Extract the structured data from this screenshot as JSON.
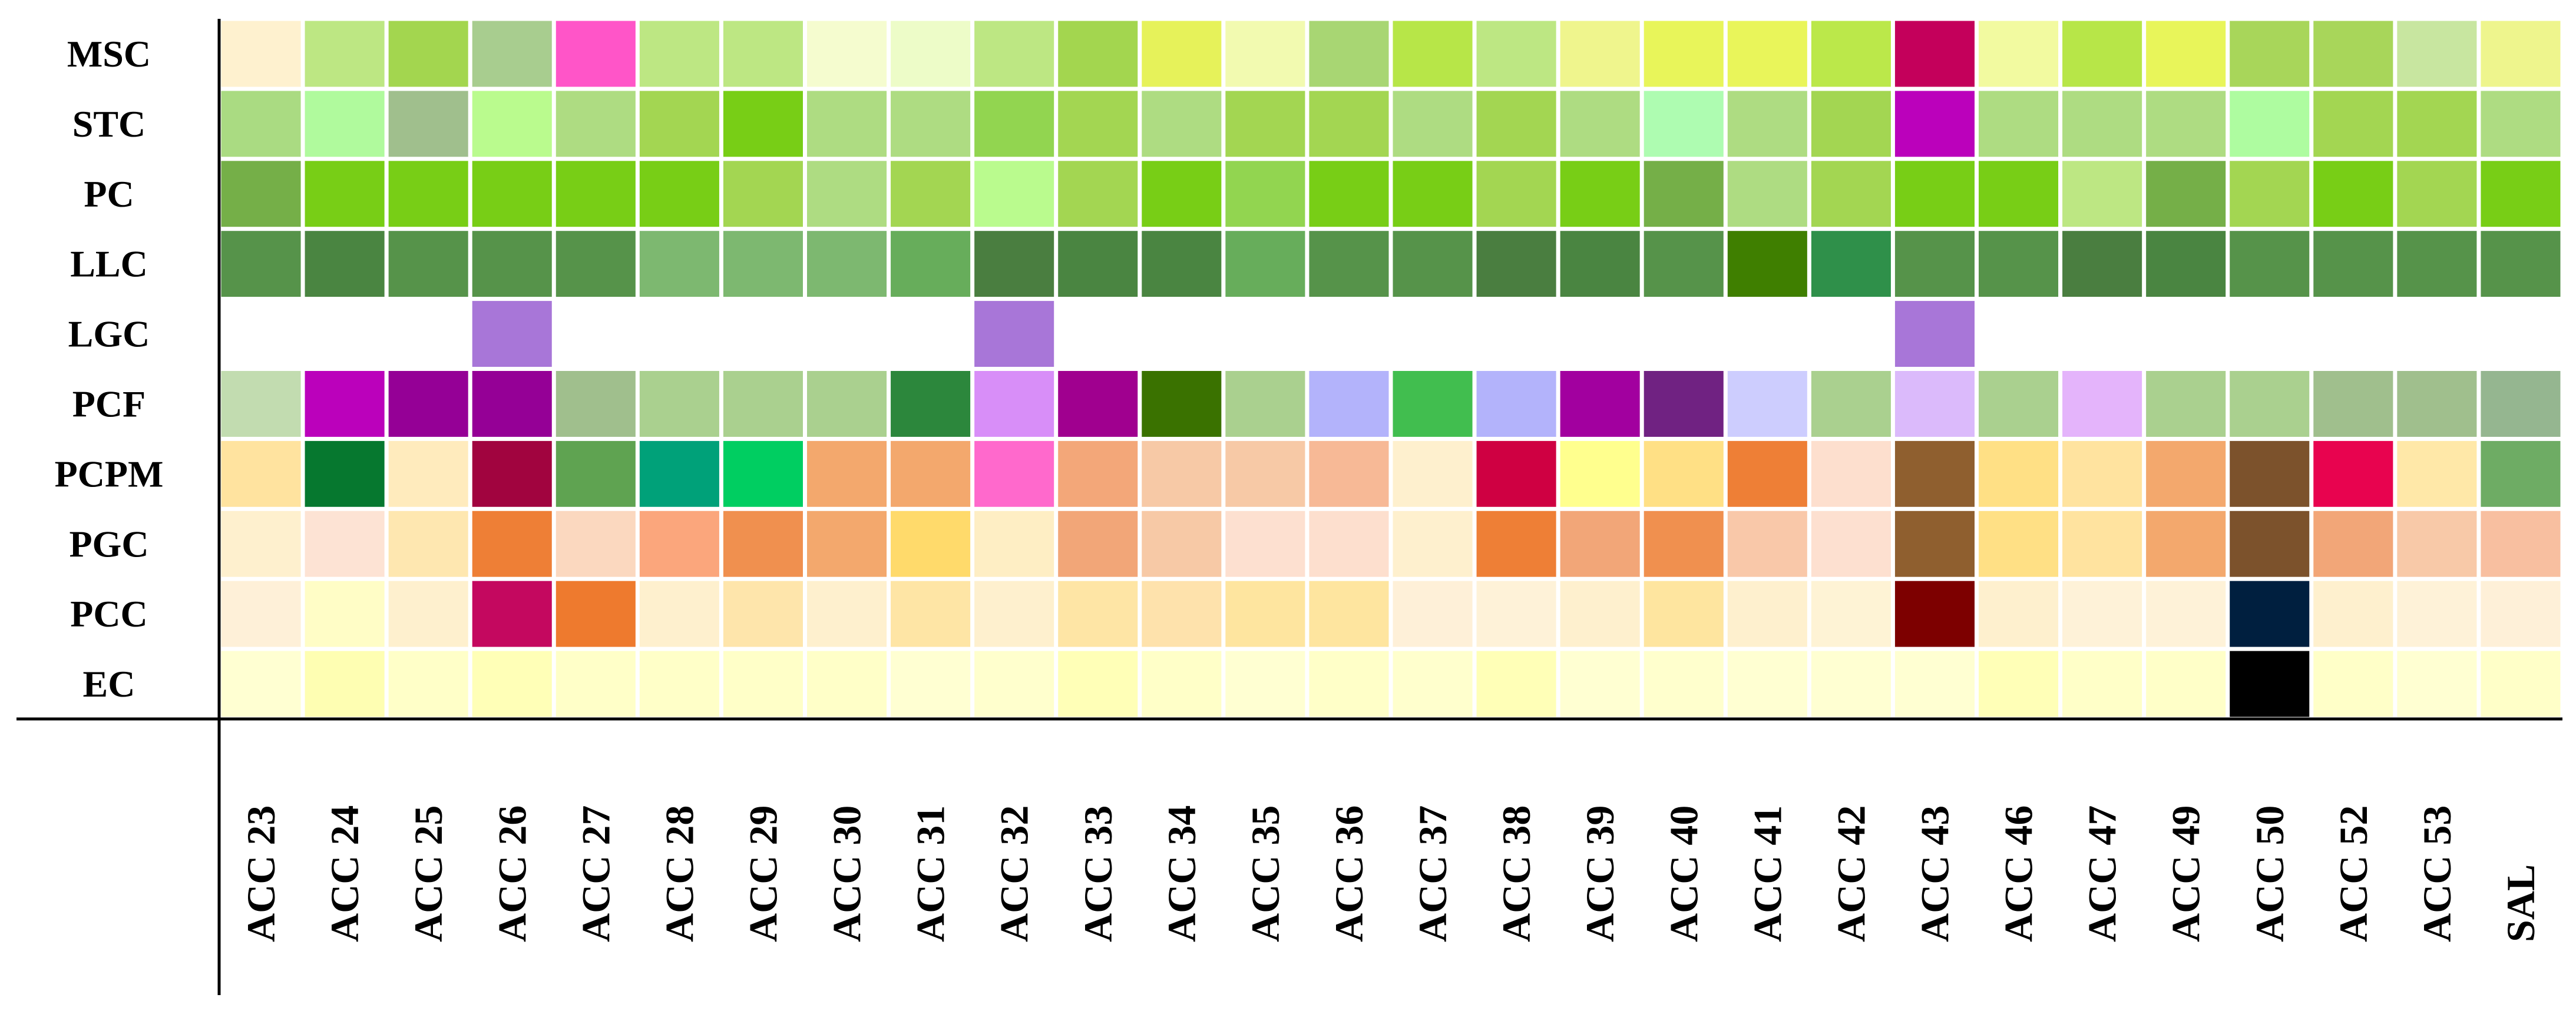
{
  "chart_data": {
    "type": "heatmap",
    "title": "",
    "xlabel": "",
    "ylabel": "",
    "rows": [
      "MSC",
      "STC",
      "PC",
      "LLC",
      "LGC",
      "PCF",
      "PCPM",
      "PGC",
      "PCC",
      "EC"
    ],
    "columns": [
      "ACC 23",
      "ACC 24",
      "ACC 25",
      "ACC 26",
      "ACC 27",
      "ACC 28",
      "ACC 29",
      "ACC 30",
      "ACC 31",
      "ACC 32",
      "ACC 33",
      "ACC 34",
      "ACC 35",
      "ACC 36",
      "ACC 37",
      "ACC 38",
      "ACC 39",
      "ACC 40",
      "ACC 41",
      "ACC 42",
      "ACC 43",
      "ACC 46",
      "ACC 47",
      "ACC 49",
      "ACC 50",
      "ACC 52",
      "ACC 53",
      "SAL"
    ],
    "colors": [
      [
        "#FEF1CF",
        "#BDE783",
        "#A3D64F",
        "#A8CD8F",
        "#FF55C8",
        "#BDE783",
        "#BDE783",
        "#F5FCCF",
        "#EDFCC8",
        "#BDE783",
        "#A3D64F",
        "#E6F25A",
        "#F2FAB0",
        "#A8D673",
        "#B7E648",
        "#BDE783",
        "#EFF58D",
        "#E8F55A",
        "#E9F55A",
        "#BBE84A",
        "#C4005B",
        "#F2FAA0",
        "#B7E648",
        "#E8F55A",
        "#A8D65A",
        "#A8D65A",
        "#C8E6A0",
        "#EEF58D"
      ],
      [
        "#AADB82",
        "#B0FA9D",
        "#A0BF8D",
        "#BAFB8E",
        "#AEDC82",
        "#A3D652",
        "#78CE16",
        "#AEDC82",
        "#AEDC82",
        "#92D550",
        "#A3D652",
        "#AEDC82",
        "#A3D652",
        "#A3D652",
        "#AEDC82",
        "#A3D652",
        "#AEDC82",
        "#AEFCB1",
        "#AEDC82",
        "#A3D652",
        "#BB01BB",
        "#AEDC82",
        "#AEDC82",
        "#AEDC82",
        "#AEFCA0",
        "#A3D652",
        "#A3D652",
        "#AEDC82"
      ],
      [
        "#75AF48",
        "#78CE16",
        "#78CE16",
        "#78CE16",
        "#78CE16",
        "#78CE16",
        "#A3D652",
        "#AEDC82",
        "#A3D652",
        "#BAFB8E",
        "#A3D652",
        "#78CE16",
        "#92D550",
        "#78CE16",
        "#78CE16",
        "#A3D652",
        "#78CE16",
        "#75AF48",
        "#AEDC82",
        "#A3D652",
        "#78CE16",
        "#78CE16",
        "#BDE783",
        "#75AF48",
        "#A3D652",
        "#78CE16",
        "#A3D652",
        "#78CE16"
      ],
      [
        "#56934A",
        "#4A8541",
        "#56934A",
        "#56934A",
        "#56934A",
        "#7DB870",
        "#7DB870",
        "#7DB870",
        "#67AD5B",
        "#4A7E40",
        "#4A8541",
        "#4A8541",
        "#67AD5B",
        "#56934A",
        "#56934A",
        "#4A7E40",
        "#4A8541",
        "#56934A",
        "#3F7F00",
        "#2F904A",
        "#56934A",
        "#56934A",
        "#4A7E40",
        "#4A8541",
        "#56934A",
        "#56934A",
        "#56934A",
        "#56934A"
      ],
      [
        "#FFFFFF",
        "#FFFFFF",
        "#FFFFFF",
        "#A876D8",
        "#FFFFFF",
        "#FFFFFF",
        "#FFFFFF",
        "#FFFFFF",
        "#FFFFFF",
        "#A876D8",
        "#FFFFFF",
        "#FFFFFF",
        "#FFFFFF",
        "#FFFFFF",
        "#FFFFFF",
        "#FFFFFF",
        "#FFFFFF",
        "#FFFFFF",
        "#FFFFFF",
        "#FFFFFF",
        "#A876D8",
        "#FFFFFF",
        "#FFFFFF",
        "#FFFFFF",
        "#FFFFFF",
        "#FFFFFF",
        "#FFFFFF",
        "#FFFFFF"
      ],
      [
        "#C2DCB0",
        "#BB01BB",
        "#950096",
        "#950096",
        "#A0BF8D",
        "#AAD08F",
        "#AAD08F",
        "#AAD08F",
        "#2C873C",
        "#D88EF8",
        "#A0008F",
        "#3A7200",
        "#AAD08F",
        "#B3B3FB",
        "#41BE4F",
        "#B3B3FB",
        "#A2009F",
        "#702282",
        "#CDCDFE",
        "#AAD08F",
        "#DBBAFB",
        "#AAD08F",
        "#E4B4FB",
        "#AAD08F",
        "#AAD08F",
        "#A0BF8D",
        "#A0BF8D",
        "#95B690"
      ],
      [
        "#FFE39F",
        "#06782F",
        "#FFEBBD",
        "#A1043F",
        "#5FA351",
        "#00A179",
        "#00CE61",
        "#F3A86D",
        "#F3A86D",
        "#FF69CC",
        "#F3A779",
        "#F7C9A6",
        "#F7C9A6",
        "#F7B996",
        "#FEF0CE",
        "#CF0042",
        "#FFFF8E",
        "#FFE085",
        "#EE7F36",
        "#FDDFCE",
        "#8F5F2F",
        "#FFE085",
        "#FFE39F",
        "#F3A86D",
        "#7C522C",
        "#E8034F",
        "#FFE8A8",
        "#6EAC64"
      ],
      [
        "#FEF0CE",
        "#FDE3D4",
        "#FEE7B0",
        "#EE7F36",
        "#FBD8BF",
        "#FBA67C",
        "#F0904F",
        "#F3A86D",
        "#FFDA6B",
        "#FEEEC4",
        "#F2A678",
        "#F7C9A6",
        "#FDE0D0",
        "#FDDFCE",
        "#FEF0CE",
        "#EE7F36",
        "#F2A678",
        "#F0904F",
        "#F9C8A9",
        "#FDE0D0",
        "#8F5F2F",
        "#FFE085",
        "#FFE39F",
        "#F3A86D",
        "#7C522C",
        "#F2A678",
        "#F8C9A8",
        "#F8BFA0"
      ],
      [
        "#FEF0D8",
        "#FFFDC6",
        "#FEF0CE",
        "#C4085F",
        "#EE7A2E",
        "#FEF0CE",
        "#FEE5AB",
        "#FEF0CE",
        "#FEE5A5",
        "#FEF0CE",
        "#FEE5A5",
        "#FEE2AC",
        "#FEE59F",
        "#FEE59F",
        "#FEF0D8",
        "#FEF2D8",
        "#FEF0CE",
        "#FEE59F",
        "#FEF0CE",
        "#FEF3D5",
        "#7D0000",
        "#FEF0CE",
        "#FEF2D8",
        "#FEF2D8",
        "#001F3F",
        "#FEF0CE",
        "#FEF2D8",
        "#FEF0D8"
      ],
      [
        "#FFFFD2",
        "#FEFEB2",
        "#FFFFC8",
        "#FFFFB7",
        "#FFFFC8",
        "#FFFFC8",
        "#FFFFC8",
        "#FFFFC8",
        "#FFFFD2",
        "#FFFFCD",
        "#FFFFB7",
        "#FFFFC8",
        "#FFFFD2",
        "#FFFFC8",
        "#FFFFCD",
        "#FFFFB7",
        "#FFFFD2",
        "#FFFFCD",
        "#FFFFD2",
        "#FFFFD2",
        "#FFFFD2",
        "#FFFFB7",
        "#FFFFC8",
        "#FFFFC8",
        "#000000",
        "#FFFFC8",
        "#FFFFD2",
        "#FFFFC8"
      ]
    ]
  }
}
